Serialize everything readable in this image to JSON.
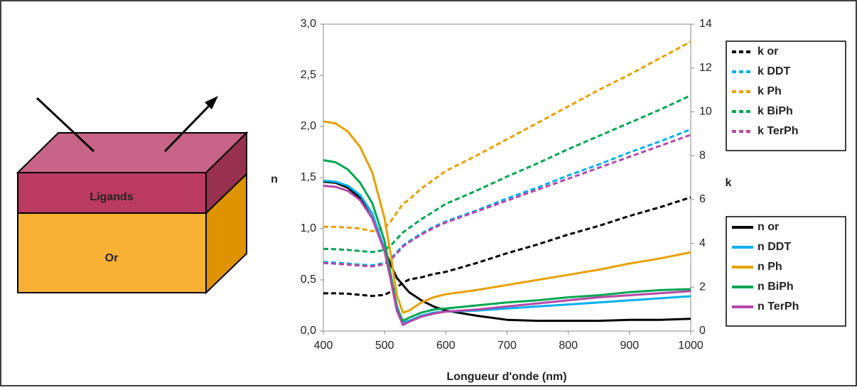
{
  "diagram": {
    "labels": [
      "Ligands",
      "Or"
    ]
  },
  "chart_data": {
    "type": "line",
    "xlabel": "Longueur d'onde (nm)",
    "ylabel": "n",
    "y2label": "k",
    "xlim": [
      400,
      1000
    ],
    "xticks": [
      400,
      500,
      600,
      700,
      800,
      900,
      1000
    ],
    "ylim": [
      0,
      3
    ],
    "yticks": [
      {
        "value": 0,
        "label": "0,0"
      },
      {
        "value": 0.5,
        "label": "0,5"
      },
      {
        "value": 1,
        "label": "1,0"
      },
      {
        "value": 1.5,
        "label": "1,5"
      },
      {
        "value": 2,
        "label": "2,0"
      },
      {
        "value": 2.5,
        "label": "2,5"
      },
      {
        "value": 3,
        "label": "3,0"
      }
    ],
    "y2lim": [
      0,
      14
    ],
    "y2ticks": [
      0,
      2,
      4,
      6,
      8,
      10,
      12,
      14
    ],
    "x": [
      400,
      420,
      440,
      460,
      480,
      500,
      510,
      520,
      530,
      540,
      560,
      580,
      600,
      650,
      700,
      750,
      800,
      850,
      900,
      950,
      1000
    ],
    "series": [
      {
        "name": "k or",
        "color": "#000000",
        "axis": "y2",
        "values": [
          1.72,
          1.72,
          1.7,
          1.65,
          1.6,
          1.65,
          1.8,
          2.0,
          2.2,
          2.35,
          2.45,
          2.6,
          2.7,
          3.1,
          3.55,
          3.95,
          4.4,
          4.8,
          5.25,
          5.65,
          6.1
        ]
      },
      {
        "name": "k DDT",
        "color": "#00b0f0",
        "axis": "y2",
        "values": [
          3.15,
          3.12,
          3.08,
          3.03,
          3.0,
          3.1,
          3.3,
          3.6,
          3.9,
          4.1,
          4.45,
          4.75,
          5.0,
          5.5,
          6.05,
          6.55,
          7.1,
          7.6,
          8.15,
          8.65,
          9.2
        ]
      },
      {
        "name": "k Ph",
        "color": "#e8a000",
        "axis": "y2",
        "values": [
          4.76,
          4.75,
          4.72,
          4.68,
          4.55,
          4.7,
          5.0,
          5.4,
          5.8,
          6.0,
          6.5,
          6.9,
          7.3,
          8.0,
          8.75,
          9.5,
          10.25,
          11.0,
          11.7,
          12.45,
          13.2
        ]
      },
      {
        "name": "k BiPh",
        "color": "#00a650",
        "axis": "y2",
        "values": [
          3.75,
          3.73,
          3.7,
          3.65,
          3.6,
          3.7,
          3.9,
          4.2,
          4.5,
          4.7,
          5.1,
          5.45,
          5.8,
          6.4,
          7.05,
          7.65,
          8.3,
          8.9,
          9.5,
          10.1,
          10.75
        ]
      },
      {
        "name": "k TerPh",
        "color": "#b548a8",
        "axis": "y2",
        "values": [
          3.1,
          3.07,
          3.03,
          2.98,
          2.95,
          3.05,
          3.25,
          3.55,
          3.85,
          4.05,
          4.4,
          4.7,
          4.95,
          5.45,
          5.95,
          6.45,
          6.95,
          7.45,
          7.95,
          8.45,
          8.95
        ]
      },
      {
        "name": "n or",
        "color": "#000000",
        "values": [
          1.46,
          1.45,
          1.4,
          1.3,
          1.1,
          0.8,
          0.65,
          0.52,
          0.45,
          0.38,
          0.3,
          0.24,
          0.2,
          0.15,
          0.11,
          0.1,
          0.1,
          0.1,
          0.11,
          0.11,
          0.12
        ]
      },
      {
        "name": "n DDT",
        "color": "#00b0f0",
        "values": [
          1.47,
          1.46,
          1.42,
          1.33,
          1.15,
          0.8,
          0.55,
          0.25,
          0.08,
          0.1,
          0.15,
          0.18,
          0.19,
          0.2,
          0.22,
          0.24,
          0.26,
          0.28,
          0.3,
          0.32,
          0.34
        ]
      },
      {
        "name": "n Ph",
        "color": "#e8a000",
        "values": [
          2.05,
          2.03,
          1.95,
          1.8,
          1.55,
          1.1,
          0.75,
          0.35,
          0.18,
          0.2,
          0.28,
          0.33,
          0.36,
          0.4,
          0.45,
          0.5,
          0.55,
          0.6,
          0.66,
          0.71,
          0.77
        ]
      },
      {
        "name": "n BiPh",
        "color": "#00a650",
        "values": [
          1.67,
          1.65,
          1.58,
          1.45,
          1.25,
          0.88,
          0.55,
          0.22,
          0.1,
          0.13,
          0.18,
          0.21,
          0.22,
          0.25,
          0.28,
          0.3,
          0.33,
          0.35,
          0.38,
          0.4,
          0.41
        ]
      },
      {
        "name": "n TerPh",
        "color": "#b548a8",
        "values": [
          1.42,
          1.41,
          1.37,
          1.28,
          1.1,
          0.78,
          0.5,
          0.2,
          0.06,
          0.09,
          0.14,
          0.17,
          0.19,
          0.21,
          0.24,
          0.27,
          0.3,
          0.33,
          0.35,
          0.37,
          0.39
        ]
      }
    ]
  }
}
